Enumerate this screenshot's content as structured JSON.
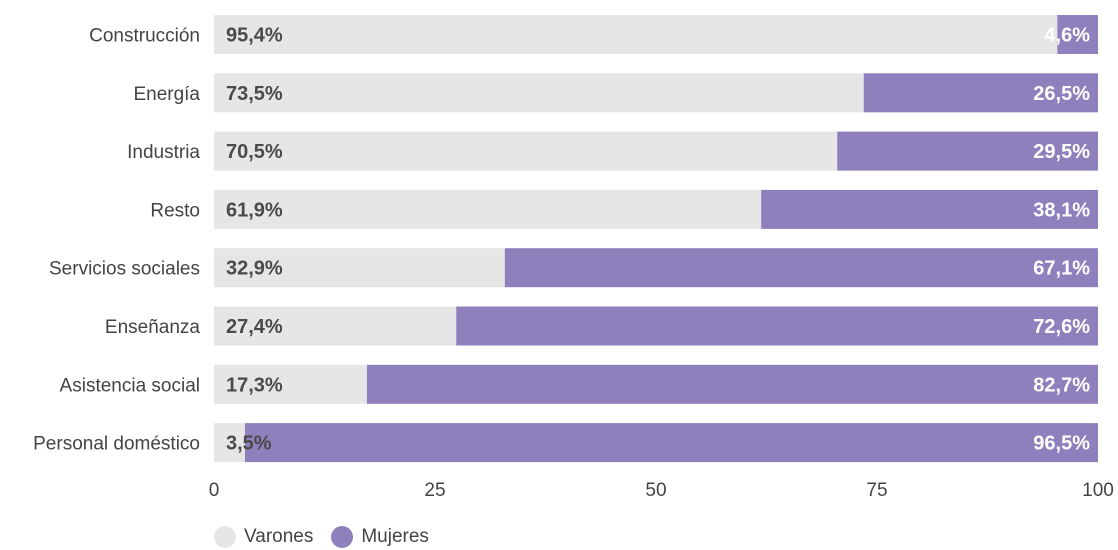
{
  "chart_data": {
    "type": "bar",
    "orientation": "horizontal",
    "stacked": true,
    "categories": [
      "Construcción",
      "Energía",
      "Industria",
      "Resto",
      "Servicios sociales",
      "Enseñanza",
      "Asistencia social",
      "Personal doméstico"
    ],
    "series": [
      {
        "name": "Varones",
        "color": "#e6e6e6",
        "values": [
          95.4,
          73.5,
          70.5,
          61.9,
          32.9,
          27.4,
          17.3,
          3.5
        ],
        "labels": [
          "95,4%",
          "73,5%",
          "70,5%",
          "61,9%",
          "32,9%",
          "27,4%",
          "17,3%",
          "3,5%"
        ]
      },
      {
        "name": "Mujeres",
        "color": "#8f80bd",
        "values": [
          4.6,
          26.5,
          29.5,
          38.1,
          67.1,
          72.6,
          82.7,
          96.5
        ],
        "labels": [
          "4,6%",
          "26,5%",
          "29,5%",
          "38,1%",
          "67,1%",
          "72,6%",
          "82,7%",
          "96,5%"
        ]
      }
    ],
    "x_ticks": [
      "0",
      "25",
      "50",
      "75",
      "100"
    ],
    "x_tick_values": [
      0,
      25,
      50,
      75,
      100
    ],
    "xlim": [
      0,
      100
    ],
    "legend_position": "bottom-left",
    "grid": false
  }
}
